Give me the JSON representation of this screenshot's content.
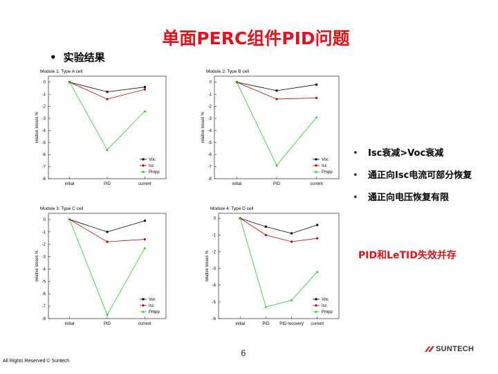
{
  "slide": {
    "title": "单面PERC组件PID问题",
    "subheading": "实验结果",
    "bullets": [
      "Isc衰减>Voc衰减",
      "通正向Isc电流可部分恢复",
      "通正向电压恢复有限"
    ],
    "highlight": "PID和LeTID失效并存",
    "page_number": "6",
    "footer": "All Rights Reserved © Suntech",
    "logo_text": "SUNTECH",
    "colors": {
      "title": "#e0121b",
      "voc": "#000000",
      "isc": "#c00000",
      "pmpp": "#22cc22"
    }
  },
  "chart_data": [
    {
      "type": "line",
      "title": "Module 1: Type A cell",
      "ylabel": "relative losses %",
      "categories": [
        "initial",
        "PID",
        "current"
      ],
      "ylim": [
        -8,
        0.5
      ],
      "yticks": [
        "0",
        "-1",
        "-2",
        "-3",
        "-4",
        "-5",
        "-6",
        "-7",
        "-8"
      ],
      "series": [
        {
          "name": "Voc",
          "values": [
            0,
            -0.8,
            -0.4
          ]
        },
        {
          "name": "Isc",
          "values": [
            0,
            -1.4,
            -0.6
          ]
        },
        {
          "name": "Pmpp",
          "values": [
            0,
            -5.6,
            -2.4
          ]
        }
      ]
    },
    {
      "type": "line",
      "title": "Module 2: Type B cell",
      "ylabel": "relative losses %",
      "categories": [
        "initial",
        "PID",
        "current"
      ],
      "ylim": [
        -8,
        0.5
      ],
      "yticks": [
        "0",
        "-1",
        "-2",
        "-3",
        "-4",
        "-5",
        "-6",
        "-7",
        "-8"
      ],
      "series": [
        {
          "name": "Voc",
          "values": [
            0,
            -0.7,
            -0.2
          ]
        },
        {
          "name": "Isc",
          "values": [
            0,
            -1.4,
            -1.3
          ]
        },
        {
          "name": "Pmpp",
          "values": [
            0,
            -6.9,
            -2.9
          ]
        }
      ]
    },
    {
      "type": "line",
      "title": "Module 3: Type C cell",
      "ylabel": "relative losses %",
      "categories": [
        "initial",
        "PID",
        "current"
      ],
      "ylim": [
        -8,
        0.5
      ],
      "yticks": [
        "0",
        "-1",
        "-2",
        "-3",
        "-4",
        "-5",
        "-6",
        "-7",
        "-8"
      ],
      "series": [
        {
          "name": "Voc",
          "values": [
            0,
            -1.0,
            -0.1
          ]
        },
        {
          "name": "Isc",
          "values": [
            0,
            -1.8,
            -1.6
          ]
        },
        {
          "name": "Pmpp",
          "values": [
            0,
            -7.7,
            -2.3
          ]
        }
      ]
    },
    {
      "type": "line",
      "title": "Module 4: Type D cell",
      "ylabel": "relative losses %",
      "categories": [
        "initial",
        "PID",
        "PID recovery",
        "current"
      ],
      "ylim": [
        -6,
        0.3
      ],
      "yticks": [
        "0",
        "-1",
        "-2",
        "-3",
        "-4",
        "-5",
        "-6"
      ],
      "series": [
        {
          "name": "Voc",
          "values": [
            0,
            -0.5,
            -0.9,
            -0.4
          ]
        },
        {
          "name": "Isc",
          "values": [
            0,
            -1.0,
            -1.4,
            -1.2
          ]
        },
        {
          "name": "Pmpp",
          "values": [
            0,
            -5.3,
            -4.9,
            -3.2
          ]
        }
      ]
    }
  ]
}
